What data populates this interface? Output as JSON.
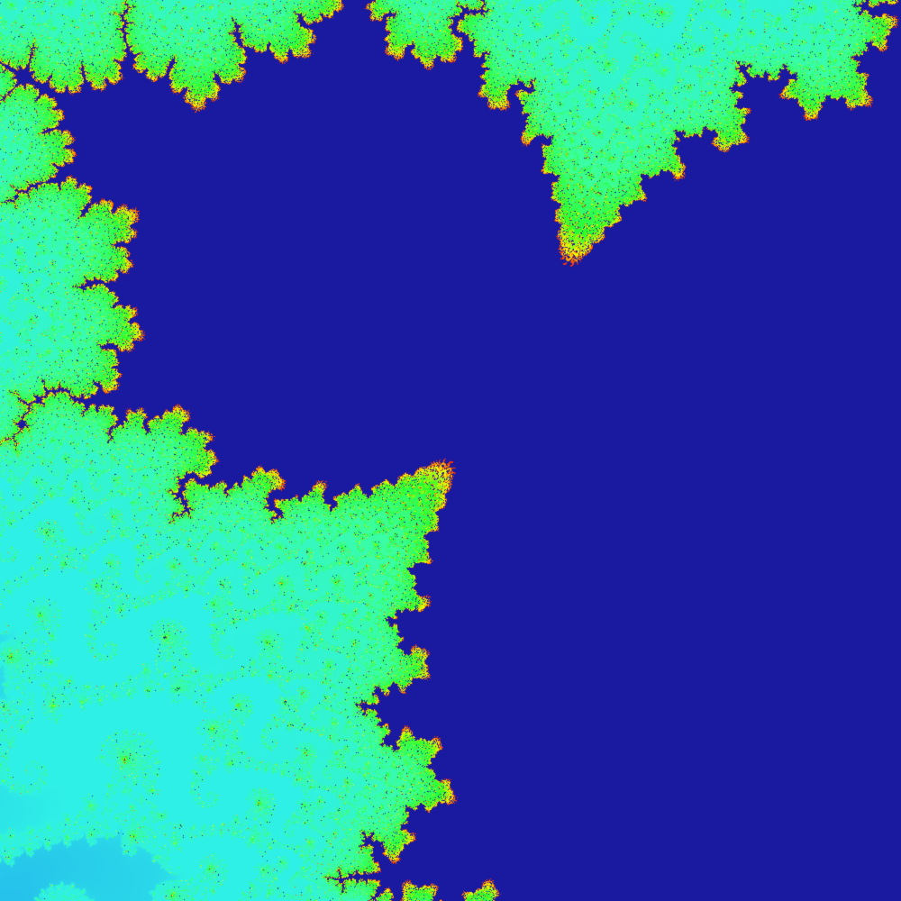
{
  "image": {
    "subject": "fractal",
    "palette": {
      "background_far": "#0414ff",
      "background_near": "#1e7cff",
      "filament": "#2ff0e6",
      "filament_bright": "#3cff9a",
      "core_green": "#25ff2a",
      "core_yellow": "#ffff00",
      "core_red": "#ff2000",
      "core_center": "#1a1aa0"
    },
    "fractal": {
      "kind": "julia",
      "c_re": -0.7437,
      "c_im": 0.1318,
      "view": {
        "center_re": -0.7436447,
        "center_im": 0.1318252,
        "span": 0.00016
      },
      "max_iterations": 900
    }
  }
}
